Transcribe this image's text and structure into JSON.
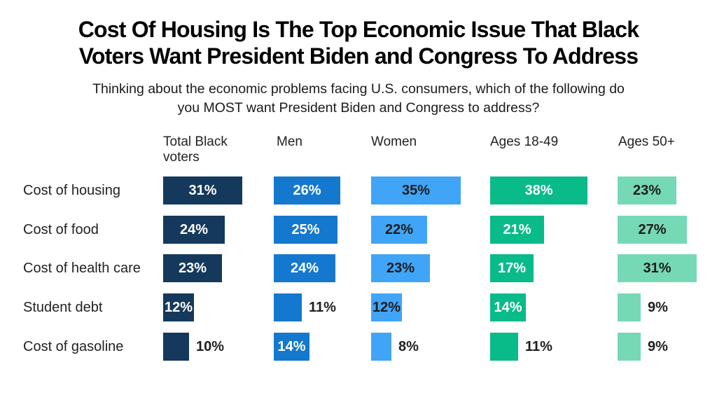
{
  "header": {
    "title_lines": [
      "Cost Of Housing Is The Top Economic Issue That Black",
      "Voters Want President Biden and Congress To Address"
    ],
    "subtitle_lines": [
      "Thinking about the economic problems facing U.S. consumers, which of the following do",
      "you MOST want President Biden and Congress to address?"
    ]
  },
  "chart_data": {
    "type": "bar",
    "orientation": "horizontal",
    "title": "Cost Of Housing Is The Top Economic Issue That Black Voters Want President Biden and Congress To Address",
    "subtitle": "Thinking about the economic problems facing U.S. consumers, which of the following do you MOST want President Biden and Congress to address?",
    "categories": [
      "Cost of housing",
      "Cost of food",
      "Cost of health care",
      "Student debt",
      "Cost of gasoline"
    ],
    "series": [
      {
        "name": "Total Black voters",
        "color": "#14395C",
        "label_color": "#ffffff",
        "values": [
          31,
          24,
          23,
          12,
          10
        ]
      },
      {
        "name": "Men",
        "color": "#1478CE",
        "label_color": "#ffffff",
        "values": [
          26,
          25,
          24,
          11,
          14
        ]
      },
      {
        "name": "Women",
        "color": "#40A5F6",
        "label_color": "#1c1c1c",
        "values": [
          35,
          22,
          23,
          12,
          8
        ]
      },
      {
        "name": "Ages 18-49",
        "color": "#0ABB8A",
        "label_color": "#ffffff",
        "values": [
          38,
          21,
          17,
          14,
          11
        ]
      },
      {
        "name": "Ages 50+",
        "color": "#75D9B5",
        "label_color": "#1c1c1c",
        "values": [
          23,
          27,
          31,
          9,
          9
        ]
      }
    ],
    "value_suffix": "%",
    "value_range": [
      0,
      40
    ],
    "grid": false,
    "legend_position": "column-headers"
  }
}
